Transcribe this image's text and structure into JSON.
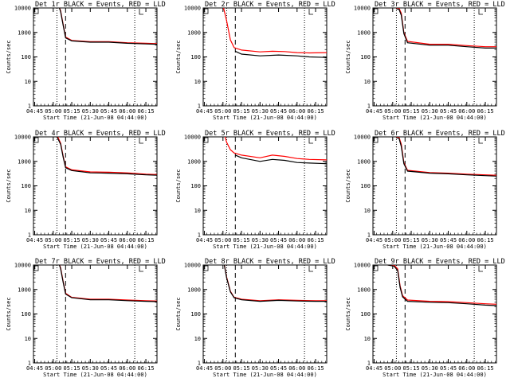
{
  "figure": {
    "background": "#ffffff",
    "event_color": "#000000",
    "lld_color": "#ff0000",
    "xlabel": "Start Time (21-Jun-08 04:44:00)",
    "ylabel": "Counts/sec"
  },
  "chart_data": [
    {
      "type": "line",
      "title": "Det 1r BLACK = Events, RED = LLD",
      "xlabel": "Start Time (21-Jun-08 04:44:00)",
      "ylabel": "Counts/sec",
      "yscale": "log",
      "ylim": [
        1,
        10000
      ],
      "y_ticks": [
        "1",
        "10",
        "100",
        "1000",
        "10000"
      ],
      "x_ticks": [
        "04:45",
        "05:00",
        "05:15",
        "05:30",
        "05:45",
        "06:00",
        "06:15"
      ],
      "xlim": [
        "04:44",
        "06:24"
      ],
      "vlines_dotted": [
        "05:03",
        "06:06"
      ],
      "vline_dashed": "05:10",
      "series": [
        {
          "name": "BLACK = Events",
          "color": "#000000",
          "x": [
            "05:03",
            "05:06",
            "05:08",
            "05:10",
            "05:15",
            "05:30",
            "05:45",
            "06:00",
            "06:15",
            "06:24"
          ],
          "y": [
            20000,
            7000,
            2000,
            600,
            450,
            400,
            400,
            360,
            340,
            330
          ]
        },
        {
          "name": "RED = LLD",
          "color": "#ff0000",
          "x": [
            "05:03",
            "05:06",
            "05:08",
            "05:10",
            "05:15",
            "05:30",
            "05:45",
            "06:00",
            "06:15",
            "06:24"
          ],
          "y": [
            20000,
            7500,
            2200,
            650,
            470,
            420,
            420,
            380,
            360,
            350
          ]
        }
      ]
    },
    {
      "type": "line",
      "title": "Det 2r BLACK = Events, RED = LLD",
      "xlabel": "Start Time (21-Jun-08 04:44:00)",
      "ylabel": "Counts/sec",
      "yscale": "log",
      "ylim": [
        1,
        10000
      ],
      "y_ticks": [
        "1",
        "10",
        "100",
        "1000",
        "10000"
      ],
      "x_ticks": [
        "04:45",
        "05:00",
        "05:15",
        "05:30",
        "05:45",
        "06:00",
        "06:15"
      ],
      "xlim": [
        "04:44",
        "06:24"
      ],
      "vlines_dotted": [
        "05:03",
        "06:06"
      ],
      "vline_dashed": "05:10",
      "series": [
        {
          "name": "BLACK = Events",
          "color": "#000000",
          "x": [
            "05:10",
            "05:15",
            "05:30",
            "05:45",
            "06:00",
            "06:10",
            "06:24"
          ],
          "y": [
            170,
            130,
            110,
            120,
            110,
            100,
            95
          ]
        },
        {
          "name": "RED = LLD",
          "color": "#ff0000",
          "x": [
            "04:59",
            "05:03",
            "05:06",
            "05:09",
            "05:15",
            "05:30",
            "05:40",
            "05:50",
            "06:00",
            "06:10",
            "06:24"
          ],
          "y": [
            20000,
            3000,
            500,
            240,
            190,
            160,
            170,
            165,
            150,
            145,
            150
          ]
        }
      ]
    },
    {
      "type": "line",
      "title": "Det 3r BLACK = Events, RED = LLD",
      "xlabel": "Start Time (21-Jun-08 04:44:00)",
      "ylabel": "Counts/sec",
      "yscale": "log",
      "ylim": [
        1,
        10000
      ],
      "y_ticks": [
        "1",
        "10",
        "100",
        "1000",
        "10000"
      ],
      "x_ticks": [
        "04:45",
        "05:00",
        "05:15",
        "05:30",
        "05:45",
        "06:00",
        "06:15"
      ],
      "xlim": [
        "04:44",
        "06:24"
      ],
      "vlines_dotted": [
        "05:03",
        "06:06"
      ],
      "vline_dashed": "05:10",
      "series": [
        {
          "name": "BLACK = Events",
          "color": "#000000",
          "x": [
            "05:03",
            "05:05",
            "05:07",
            "05:09",
            "05:12",
            "05:30",
            "05:45",
            "06:00",
            "06:15",
            "06:24"
          ],
          "y": [
            9000,
            9000,
            5000,
            900,
            380,
            300,
            300,
            260,
            230,
            230
          ]
        },
        {
          "name": "RED = LLD",
          "color": "#ff0000",
          "x": [
            "05:03",
            "05:05",
            "05:07",
            "05:09",
            "05:12",
            "05:30",
            "05:45",
            "06:00",
            "06:15",
            "06:24"
          ],
          "y": [
            10000,
            10000,
            6000,
            1000,
            430,
            330,
            330,
            290,
            260,
            260
          ]
        }
      ]
    },
    {
      "type": "line",
      "title": "Det 4r BLACK = Events, RED = LLD",
      "xlabel": "Start Time (21-Jun-08 04:44:00)",
      "ylabel": "Counts/sec",
      "yscale": "log",
      "ylim": [
        1,
        10000
      ],
      "y_ticks": [
        "1",
        "10",
        "100",
        "1000",
        "10000"
      ],
      "x_ticks": [
        "04:45",
        "05:00",
        "05:15",
        "05:30",
        "05:45",
        "06:00",
        "06:15"
      ],
      "xlim": [
        "04:44",
        "06:24"
      ],
      "vlines_dotted": [
        "05:03",
        "06:06"
      ],
      "vline_dashed": "05:10",
      "series": [
        {
          "name": "BLACK = Events",
          "color": "#000000",
          "x": [
            "05:03",
            "05:06",
            "05:08",
            "05:10",
            "05:15",
            "05:30",
            "05:45",
            "06:00",
            "06:15",
            "06:24"
          ],
          "y": [
            10000,
            5000,
            1500,
            550,
            420,
            340,
            330,
            310,
            280,
            270
          ]
        },
        {
          "name": "RED = LLD",
          "color": "#ff0000",
          "x": [
            "05:03",
            "05:06",
            "05:08",
            "05:10",
            "05:15",
            "05:30",
            "05:45",
            "06:00",
            "06:15",
            "06:24"
          ],
          "y": [
            12000,
            5500,
            1700,
            600,
            450,
            370,
            360,
            340,
            300,
            290
          ]
        }
      ]
    },
    {
      "type": "line",
      "title": "Det 5r BLACK = Events, RED = LLD",
      "xlabel": "Start Time (21-Jun-08 04:44:00)",
      "ylabel": "Counts/sec",
      "yscale": "log",
      "ylim": [
        1,
        10000
      ],
      "y_ticks": [
        "1",
        "10",
        "100",
        "1000",
        "10000"
      ],
      "x_ticks": [
        "04:45",
        "05:00",
        "05:15",
        "05:30",
        "05:45",
        "06:00",
        "06:15"
      ],
      "xlim": [
        "04:44",
        "06:24"
      ],
      "vlines_dotted": [
        "05:03",
        "06:06"
      ],
      "vline_dashed": "05:10",
      "series": [
        {
          "name": "BLACK = Events",
          "color": "#000000",
          "x": [
            "05:10",
            "05:15",
            "05:30",
            "05:40",
            "05:50",
            "06:00",
            "06:10",
            "06:24"
          ],
          "y": [
            1800,
            1400,
            1000,
            1200,
            1100,
            900,
            850,
            800
          ]
        },
        {
          "name": "RED = LLD",
          "color": "#ff0000",
          "x": [
            "05:00",
            "05:03",
            "05:06",
            "05:09",
            "05:15",
            "05:30",
            "05:40",
            "05:50",
            "06:00",
            "06:10",
            "06:24"
          ],
          "y": [
            20000,
            6000,
            3000,
            2200,
            1800,
            1400,
            1800,
            1600,
            1300,
            1200,
            1150
          ]
        }
      ]
    },
    {
      "type": "line",
      "title": "Det 6r BLACK = Events, RED = LLD",
      "xlabel": "Start Time (21-Jun-08 04:44:00)",
      "ylabel": "Counts/sec",
      "yscale": "log",
      "ylim": [
        1,
        10000
      ],
      "y_ticks": [
        "1",
        "10",
        "100",
        "1000",
        "10000"
      ],
      "x_ticks": [
        "04:45",
        "05:00",
        "05:15",
        "05:30",
        "05:45",
        "06:00",
        "06:15"
      ],
      "xlim": [
        "04:44",
        "06:24"
      ],
      "vlines_dotted": [
        "05:03",
        "06:06"
      ],
      "vline_dashed": "05:10",
      "series": [
        {
          "name": "BLACK = Events",
          "color": "#000000",
          "x": [
            "05:03",
            "05:05",
            "05:07",
            "05:09",
            "05:12",
            "05:30",
            "05:45",
            "06:00",
            "06:15",
            "06:24"
          ],
          "y": [
            9000,
            9000,
            4000,
            800,
            400,
            330,
            310,
            280,
            260,
            250
          ]
        },
        {
          "name": "RED = LLD",
          "color": "#ff0000",
          "x": [
            "05:03",
            "05:05",
            "05:07",
            "05:09",
            "05:12",
            "05:30",
            "05:45",
            "06:00",
            "06:15",
            "06:24"
          ],
          "y": [
            10000,
            10000,
            5000,
            900,
            430,
            350,
            330,
            300,
            280,
            270
          ]
        }
      ]
    },
    {
      "type": "line",
      "title": "Det 7r BLACK = Events, RED = LLD",
      "xlabel": "Start Time (21-Jun-08 04:44:00)",
      "ylabel": "Counts/sec",
      "yscale": "log",
      "ylim": [
        1,
        10000
      ],
      "y_ticks": [
        "1",
        "10",
        "100",
        "1000",
        "10000"
      ],
      "x_ticks": [
        "04:45",
        "05:00",
        "05:15",
        "05:30",
        "05:45",
        "06:00",
        "06:15"
      ],
      "xlim": [
        "04:44",
        "06:24"
      ],
      "vlines_dotted": [
        "05:03",
        "06:06"
      ],
      "vline_dashed": "05:10",
      "series": [
        {
          "name": "BLACK = Events",
          "color": "#000000",
          "x": [
            "05:03",
            "05:06",
            "05:08",
            "05:10",
            "05:15",
            "05:30",
            "05:45",
            "06:00",
            "06:15",
            "06:24"
          ],
          "y": [
            20000,
            7000,
            2000,
            650,
            460,
            380,
            380,
            350,
            330,
            320
          ]
        },
        {
          "name": "RED = LLD",
          "color": "#ff0000",
          "x": [
            "05:03",
            "05:06",
            "05:08",
            "05:10",
            "05:15",
            "05:30",
            "05:45",
            "06:00",
            "06:15",
            "06:24"
          ],
          "y": [
            20000,
            7500,
            2200,
            700,
            480,
            400,
            400,
            370,
            350,
            340
          ]
        }
      ]
    },
    {
      "type": "line",
      "title": "Det 8r BLACK = Events, RED = LLD",
      "xlabel": "Start Time (21-Jun-08 04:44:00)",
      "ylabel": "Counts/sec",
      "yscale": "log",
      "ylim": [
        1,
        10000
      ],
      "y_ticks": [
        "1",
        "10",
        "100",
        "1000",
        "10000"
      ],
      "x_ticks": [
        "04:45",
        "05:00",
        "05:15",
        "05:30",
        "05:45",
        "06:00",
        "06:15"
      ],
      "xlim": [
        "04:44",
        "06:24"
      ],
      "vlines_dotted": [
        "05:03",
        "06:06"
      ],
      "vline_dashed": "05:10",
      "series": [
        {
          "name": "BLACK = Events",
          "color": "#000000",
          "x": [
            "05:00",
            "05:03",
            "05:06",
            "05:09",
            "05:15",
            "05:30",
            "05:45",
            "06:00",
            "06:15",
            "06:24"
          ],
          "y": [
            20000,
            3000,
            800,
            460,
            380,
            330,
            360,
            340,
            330,
            330
          ]
        },
        {
          "name": "RED = LLD",
          "color": "#ff0000",
          "x": [
            "05:00",
            "05:03",
            "05:06",
            "05:09",
            "05:15",
            "05:30",
            "05:45",
            "06:00",
            "06:15",
            "06:24"
          ],
          "y": [
            20000,
            3200,
            850,
            480,
            400,
            350,
            380,
            360,
            350,
            350
          ]
        }
      ]
    },
    {
      "type": "line",
      "title": "Det 9r BLACK = Events, RED = LLD",
      "xlabel": "Start Time (21-Jun-08 04:44:00)",
      "ylabel": "Counts/sec",
      "yscale": "log",
      "ylim": [
        1,
        10000
      ],
      "y_ticks": [
        "1",
        "10",
        "100",
        "1000",
        "10000"
      ],
      "x_ticks": [
        "04:45",
        "05:00",
        "05:15",
        "05:30",
        "05:45",
        "06:00",
        "06:15"
      ],
      "xlim": [
        "04:44",
        "06:24"
      ],
      "vlines_dotted": [
        "05:03",
        "06:06"
      ],
      "vline_dashed": "05:10",
      "series": [
        {
          "name": "BLACK = Events",
          "color": "#000000",
          "x": [
            "04:56",
            "05:01",
            "05:04",
            "05:06",
            "05:08",
            "05:12",
            "05:30",
            "05:45",
            "06:00",
            "06:15",
            "06:24"
          ],
          "y": [
            10000,
            9000,
            6000,
            1200,
            500,
            330,
            300,
            290,
            260,
            230,
            220
          ]
        },
        {
          "name": "RED = LLD",
          "color": "#ff0000",
          "x": [
            "04:56",
            "05:01",
            "05:04",
            "05:06",
            "05:08",
            "05:12",
            "05:30",
            "05:45",
            "06:00",
            "06:15",
            "06:24"
          ],
          "y": [
            10000,
            10000,
            7000,
            1400,
            560,
            370,
            330,
            320,
            290,
            260,
            250
          ]
        }
      ]
    }
  ]
}
